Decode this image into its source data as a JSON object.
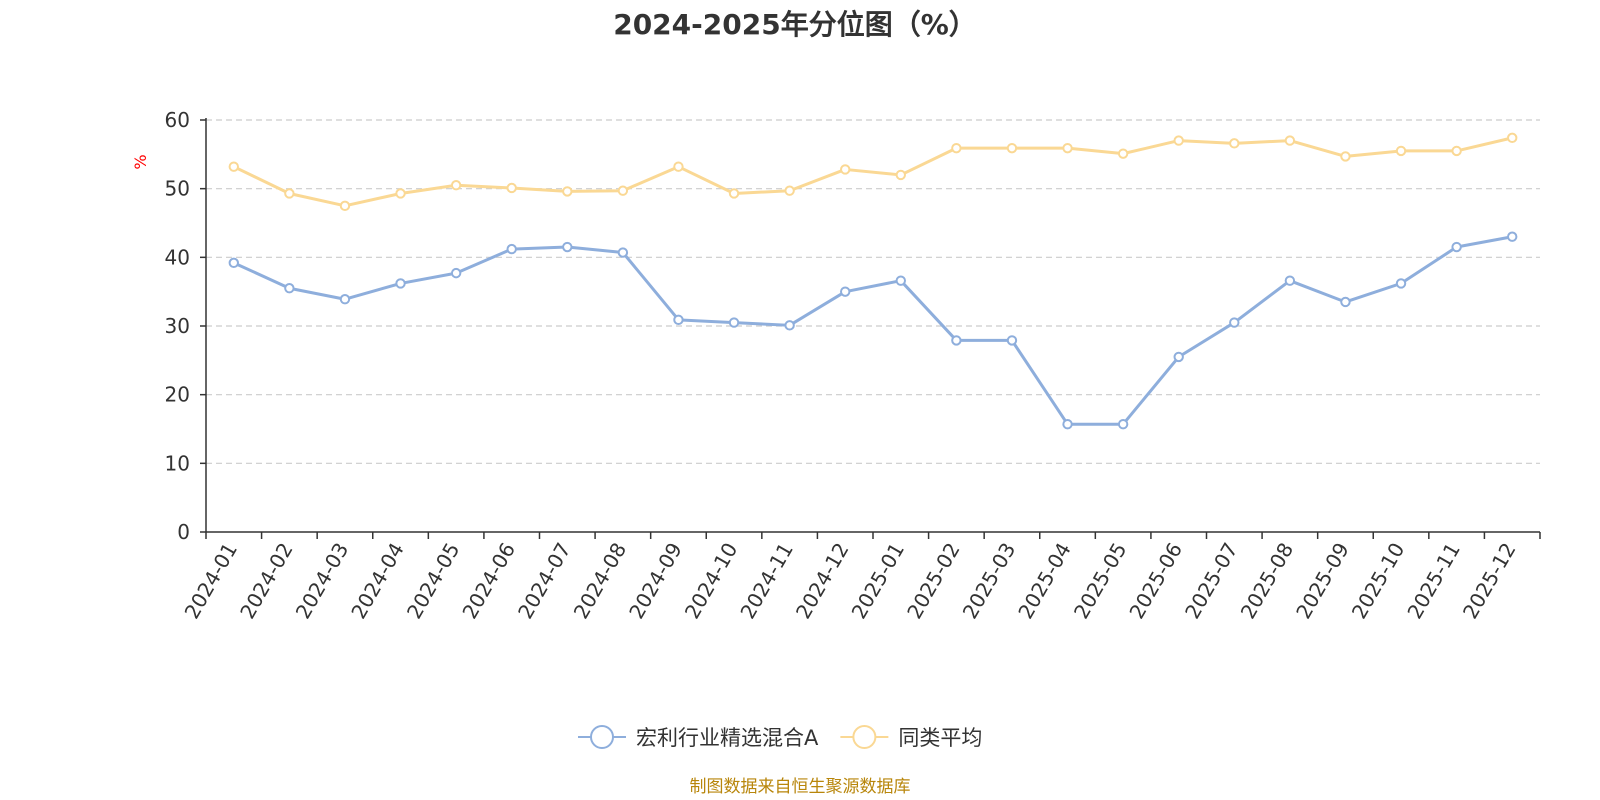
{
  "chart_data": {
    "type": "line",
    "title": "2024-2025年分位图（%）",
    "ylabel": "%",
    "xlabel": "",
    "ylim": [
      0,
      60
    ],
    "yticks": [
      0,
      10,
      20,
      30,
      40,
      50,
      60
    ],
    "grid": true,
    "legend_position": "bottom",
    "categories": [
      "2024-01",
      "2024-02",
      "2024-03",
      "2024-04",
      "2024-05",
      "2024-06",
      "2024-07",
      "2024-08",
      "2024-09",
      "2024-10",
      "2024-11",
      "2024-12",
      "2025-01",
      "2025-02",
      "2025-03",
      "2025-04",
      "2025-05",
      "2025-06",
      "2025-07",
      "2025-08",
      "2025-09",
      "2025-10",
      "2025-11",
      "2025-12"
    ],
    "series": [
      {
        "name": "宏利行业精选混合A",
        "color": "#8eaedc",
        "values": [
          39.2,
          35.5,
          33.9,
          36.2,
          37.7,
          41.2,
          41.5,
          40.7,
          30.9,
          30.5,
          30.1,
          35.0,
          36.6,
          27.9,
          27.9,
          15.7,
          15.7,
          25.5,
          30.5,
          36.6,
          33.5,
          36.2,
          41.5,
          43.0
        ]
      },
      {
        "name": "同类平均",
        "color": "#fad894",
        "values": [
          53.2,
          49.3,
          47.5,
          49.3,
          50.5,
          50.1,
          49.6,
          49.7,
          53.2,
          49.3,
          49.7,
          52.8,
          52.0,
          55.9,
          55.9,
          55.9,
          55.1,
          57.0,
          56.6,
          57.0,
          54.7,
          55.5,
          55.5,
          57.4
        ]
      }
    ]
  },
  "footer": {
    "source": "制图数据来自恒生聚源数据库"
  }
}
